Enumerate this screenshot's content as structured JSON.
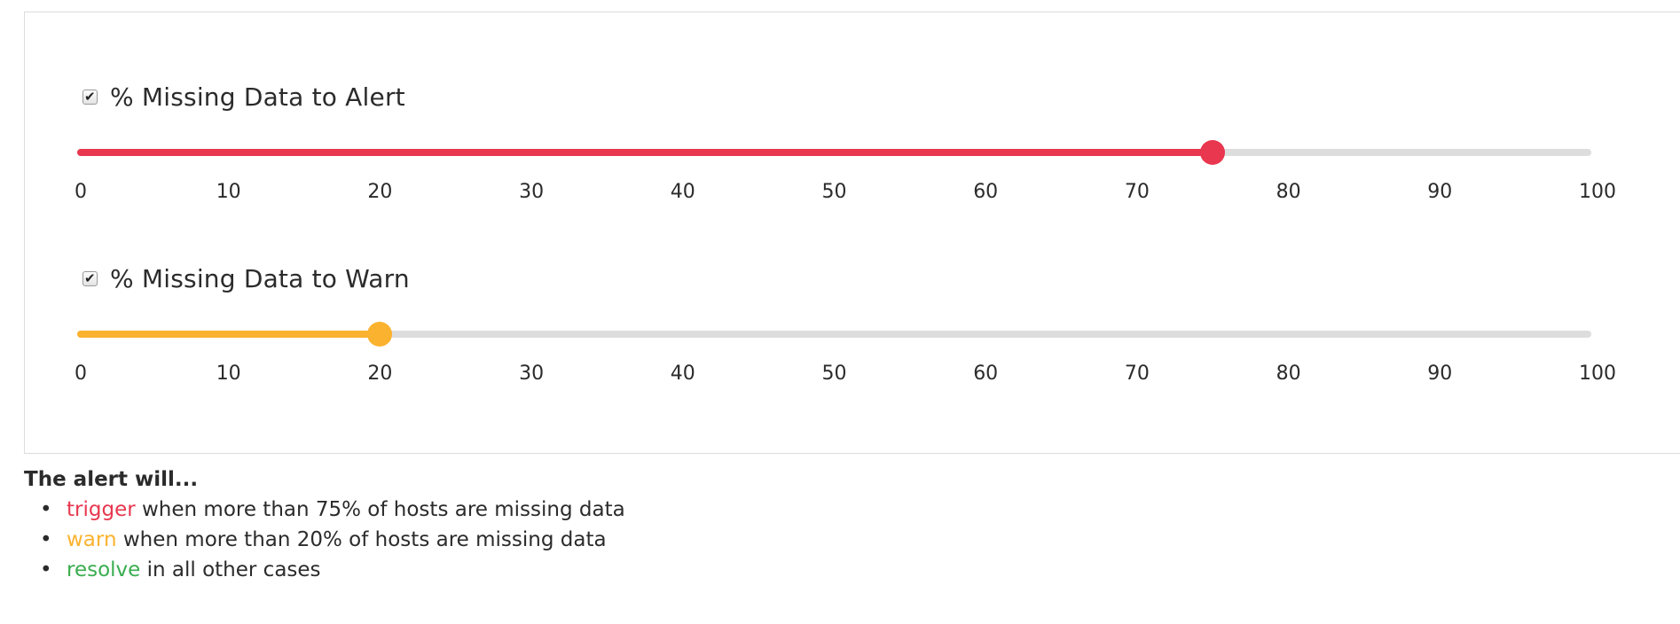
{
  "colors": {
    "alert": "#e8374f",
    "warn": "#fbb22e",
    "resolve": "#3aad4f",
    "track": "#dddddd"
  },
  "alert_slider": {
    "label": "% Missing Data to Alert",
    "checked": true,
    "value": 75,
    "min": 0,
    "max": 100,
    "ticks": [
      "0",
      "10",
      "20",
      "30",
      "40",
      "50",
      "60",
      "70",
      "80",
      "90",
      "100"
    ]
  },
  "warn_slider": {
    "label": "% Missing Data to Warn",
    "checked": true,
    "value": 20,
    "min": 0,
    "max": 100,
    "ticks": [
      "0",
      "10",
      "20",
      "30",
      "40",
      "50",
      "60",
      "70",
      "80",
      "90",
      "100"
    ]
  },
  "summary": {
    "title": "The alert will...",
    "items": [
      {
        "keyword": "trigger",
        "rest": " when more than 75% of hosts are missing data",
        "color_key": "alert"
      },
      {
        "keyword": "warn",
        "rest": " when more than 20% of hosts are missing data",
        "color_key": "warn"
      },
      {
        "keyword": "resolve",
        "rest": " in all other cases",
        "color_key": "resolve"
      }
    ]
  }
}
